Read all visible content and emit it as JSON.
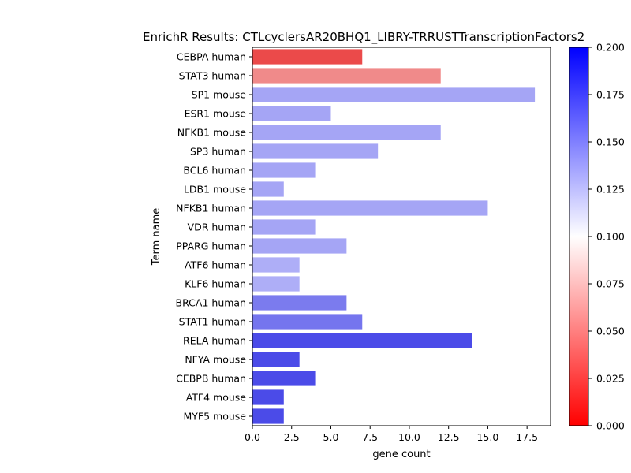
{
  "chart_data": {
    "type": "bar",
    "orientation": "horizontal",
    "title": "EnrichR Results: CTLcyclersAR20BHQ1_LIBRY-TRRUSTTranscriptionFactors2",
    "xlabel": "gene count",
    "ylabel": "Term name",
    "xlim": [
      0,
      19
    ],
    "x_ticks": [
      "0.0",
      "2.5",
      "5.0",
      "7.5",
      "10.0",
      "12.5",
      "15.0",
      "17.5"
    ],
    "x_tick_values": [
      0,
      2.5,
      5,
      7.5,
      10,
      12.5,
      15,
      17.5
    ],
    "categories": [
      "CEBPA human",
      "STAT3 human",
      "SP1 mouse",
      "ESR1 mouse",
      "NFKB1 mouse",
      "SP3 human",
      "BCL6 human",
      "LDB1 mouse",
      "NFKB1 human",
      "VDR human",
      "PPARG human",
      "ATF6 human",
      "KLF6 human",
      "BRCA1 human",
      "STAT1 human",
      "RELA human",
      "NFYA mouse",
      "CEBPB human",
      "ATF4 mouse",
      "MYF5 mouse"
    ],
    "values": [
      7,
      12,
      18,
      5,
      12,
      8,
      4,
      2,
      15,
      4,
      6,
      3,
      3,
      6,
      7,
      14,
      3,
      4,
      2,
      2
    ],
    "colors": [
      "#eb4a4a",
      "#f08a8a",
      "#a5a5f5",
      "#a5a5f5",
      "#a5a5f5",
      "#a5a5f5",
      "#a5a5f5",
      "#a5a5f5",
      "#a5a5f5",
      "#a5a5f5",
      "#a5a5f5",
      "#aeaef7",
      "#aeaef7",
      "#7b7bee",
      "#7575ee",
      "#4b4be8",
      "#4b4be8",
      "#4b4be8",
      "#4b4be8",
      "#4b4be8"
    ],
    "grid": false,
    "colorbar": {
      "range": [
        0,
        0.2
      ],
      "colormap": "bwr_r",
      "low_color": "#ff0000",
      "mid_color": "#ffffff",
      "high_color": "#0000ff",
      "ticks": [
        "0.000",
        "0.025",
        "0.050",
        "0.075",
        "0.100",
        "0.125",
        "0.150",
        "0.175",
        "0.200"
      ],
      "tick_values": [
        0,
        0.025,
        0.05,
        0.075,
        0.1,
        0.125,
        0.15,
        0.175,
        0.2
      ]
    }
  }
}
